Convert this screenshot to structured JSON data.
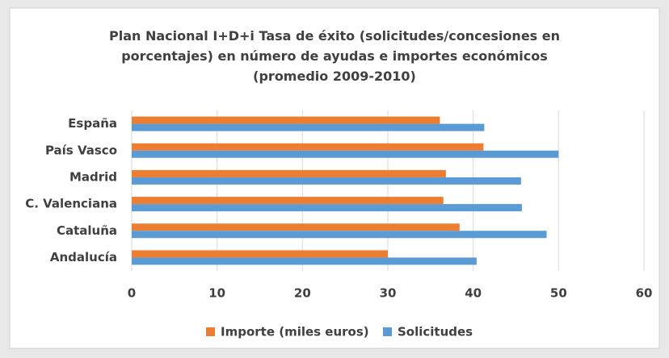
{
  "chart_data": {
    "type": "hbar",
    "title": "Plan Nacional I+D+i Tasa de éxito (solicitudes/concesiones en porcentajes) en número de ayudas e importes económicos (promedio 2009-2010)",
    "categories": [
      "España",
      "País Vasco",
      "Madrid",
      "C. Valenciana",
      "Cataluña",
      "Andalucía"
    ],
    "series": [
      {
        "name": "Importe (miles euros)",
        "color": "#ed7d31",
        "values": [
          36.1,
          41.2,
          36.8,
          36.5,
          38.4,
          30
        ]
      },
      {
        "name": "Solicitudes",
        "color": "#5b9bd5",
        "values": [
          41.3,
          50,
          45.6,
          45.7,
          48.6,
          40.4
        ]
      }
    ],
    "xlim": [
      0,
      60
    ],
    "xticks": [
      0,
      10,
      20,
      30,
      40,
      50,
      60
    ],
    "grid": true,
    "legend": "bottom"
  }
}
